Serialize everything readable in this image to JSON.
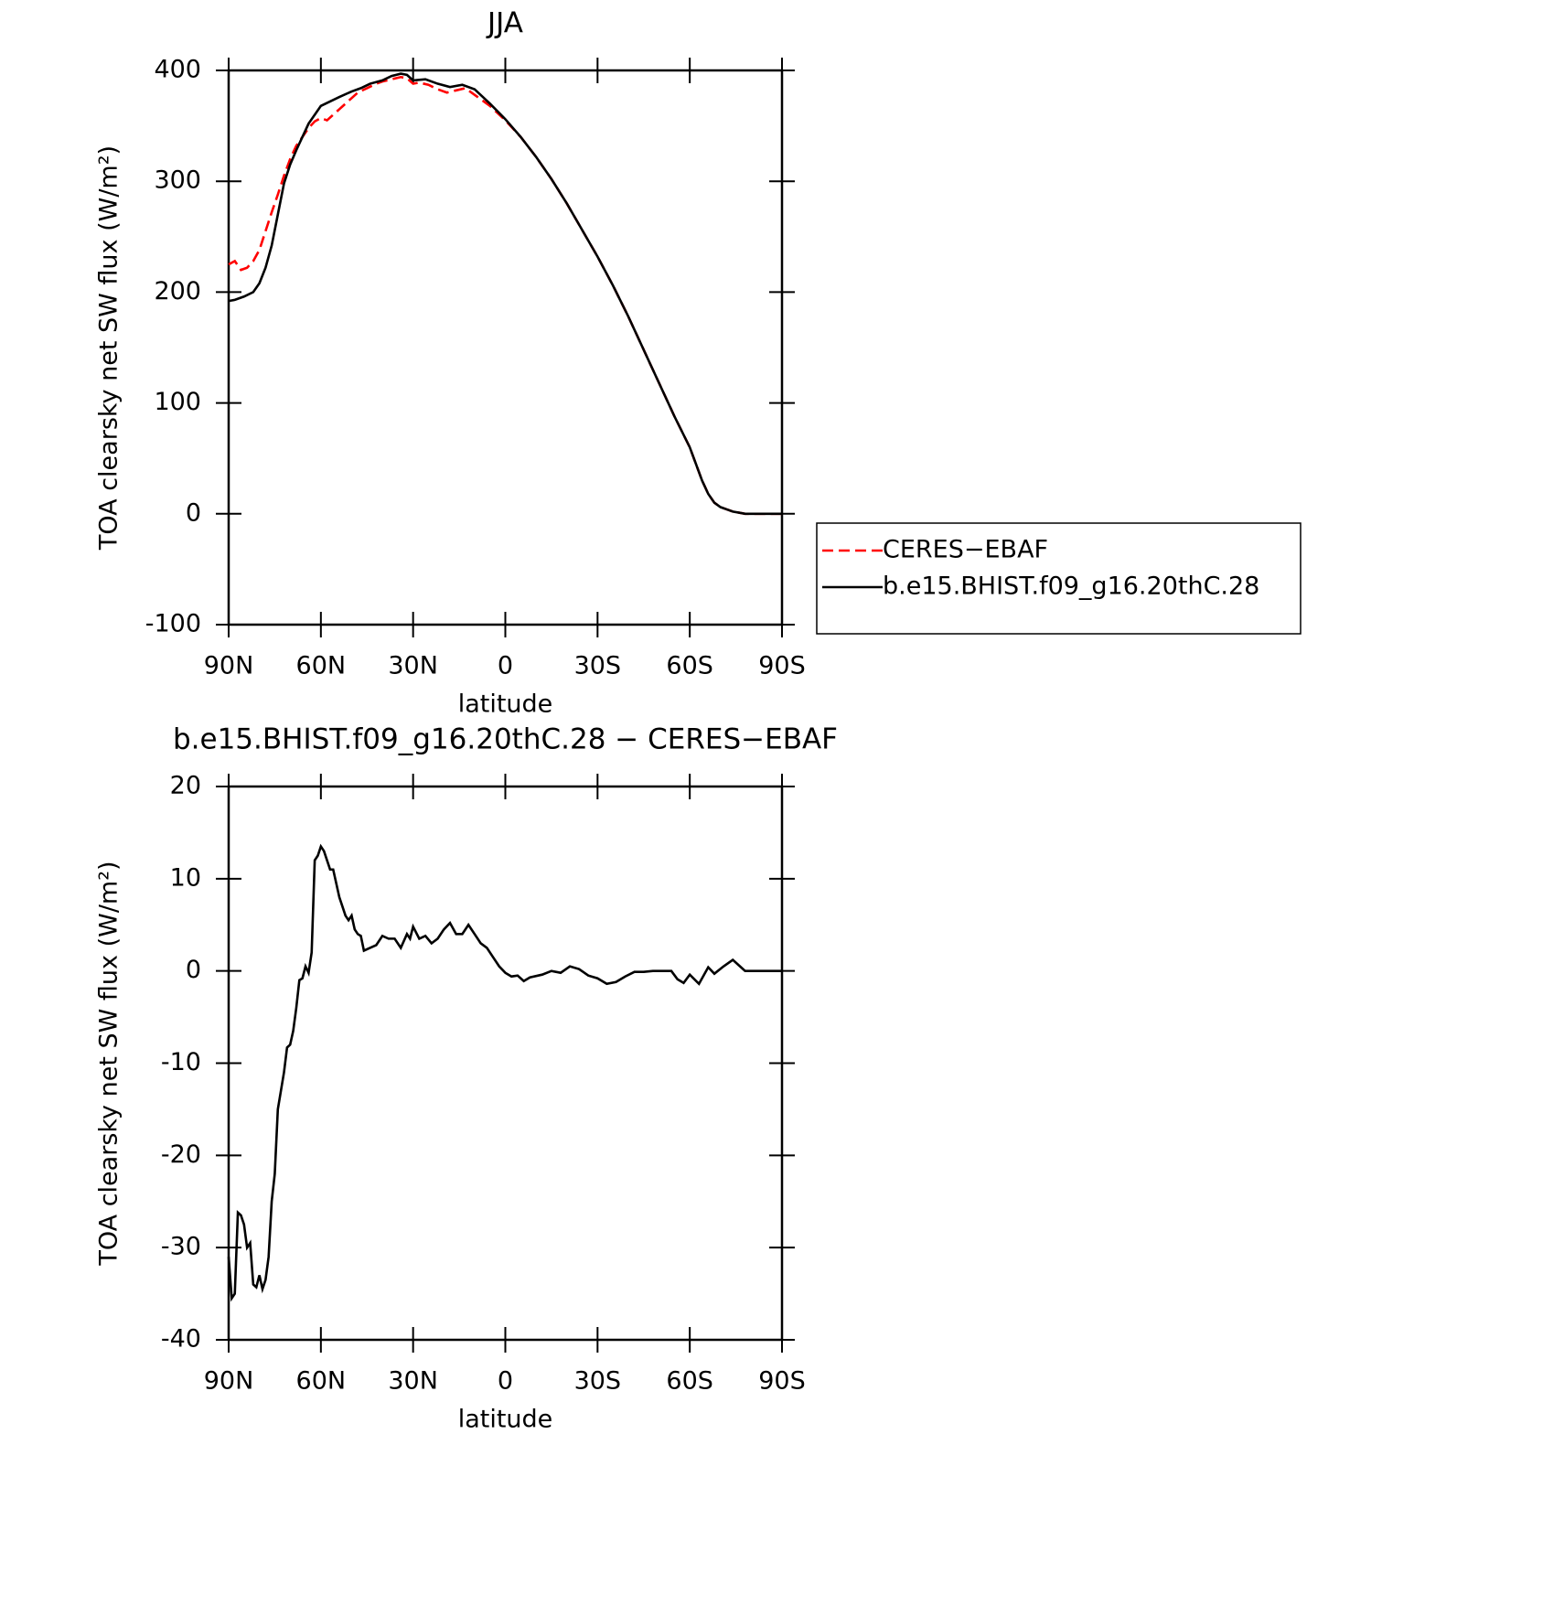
{
  "chart_data": [
    {
      "type": "line",
      "title": "JJA",
      "xlabel": "latitude",
      "ylabel": "TOA clearsky net SW flux (W/m²)",
      "xlim": [
        90,
        -90
      ],
      "xticks": [
        {
          "value": 90,
          "label": "90N"
        },
        {
          "value": 60,
          "label": "60N"
        },
        {
          "value": 30,
          "label": "30N"
        },
        0,
        {
          "value": -30,
          "label": "30S"
        },
        {
          "value": -60,
          "label": "60S"
        },
        {
          "value": -90,
          "label": "90S"
        }
      ],
      "ylim": [
        -100,
        400
      ],
      "yticks": [
        -100,
        0,
        100,
        200,
        300,
        400
      ],
      "legend": "right",
      "series": [
        {
          "name": "CERES−EBAF",
          "color": "#ff0000",
          "dash": true,
          "x": [
            90,
            88,
            86,
            84,
            82,
            80,
            78,
            76,
            74,
            72,
            70,
            68,
            66,
            64,
            62,
            60,
            58,
            56,
            54,
            52,
            50,
            48,
            45,
            42,
            40,
            37,
            34,
            32,
            30,
            28,
            25,
            22,
            19,
            16,
            13,
            10,
            5,
            0,
            -5,
            -10,
            -15,
            -20,
            -25,
            -30,
            -35,
            -40,
            -45,
            -50,
            -55,
            -60,
            -62,
            -64,
            -66,
            -68,
            -70,
            -72,
            -74,
            -76,
            -78,
            -80,
            -85,
            -90
          ],
          "values": [
            225,
            228,
            220,
            222,
            228,
            238,
            255,
            272,
            288,
            305,
            320,
            332,
            340,
            348,
            354,
            357,
            355,
            360,
            365,
            370,
            375,
            380,
            384,
            388,
            390,
            392,
            394,
            393,
            388,
            389,
            387,
            383,
            380,
            382,
            384,
            378,
            368,
            355,
            340,
            322,
            302,
            280,
            256,
            232,
            206,
            178,
            148,
            118,
            88,
            60,
            45,
            30,
            18,
            10,
            6,
            4,
            2,
            1,
            0,
            0,
            0,
            0
          ]
        },
        {
          "name": "b.e15.BHIST.f09_g16.20thC.28",
          "color": "#000000",
          "dash": false,
          "x": [
            90,
            88,
            85,
            82,
            80,
            78,
            76,
            74,
            72,
            70,
            68,
            66,
            64,
            62,
            60,
            57,
            54,
            50,
            47,
            44,
            40,
            37,
            34,
            32,
            30,
            26,
            22,
            18,
            14,
            10,
            5,
            0,
            -5,
            -10,
            -15,
            -20,
            -25,
            -30,
            -35,
            -40,
            -45,
            -50,
            -55,
            -60,
            -62,
            -64,
            -66,
            -68,
            -70,
            -72,
            -74,
            -76,
            -78,
            -80,
            -85,
            -90
          ],
          "values": [
            192,
            193,
            196,
            200,
            208,
            222,
            242,
            270,
            298,
            315,
            328,
            340,
            352,
            360,
            368,
            372,
            376,
            381,
            384,
            388,
            391,
            395,
            397,
            396,
            391,
            392,
            388,
            385,
            387,
            383,
            370,
            356,
            340,
            322,
            302,
            280,
            256,
            232,
            206,
            178,
            148,
            118,
            88,
            60,
            45,
            30,
            18,
            10,
            6,
            4,
            2,
            1,
            0,
            0,
            0,
            0
          ]
        }
      ]
    },
    {
      "type": "line",
      "title": "b.e15.BHIST.f09_g16.20thC.28 − CERES−EBAF",
      "xlabel": "latitude",
      "ylabel": "TOA clearsky net SW flux (W/m²)",
      "xlim": [
        90,
        -90
      ],
      "xticks": [
        {
          "value": 90,
          "label": "90N"
        },
        {
          "value": 60,
          "label": "60N"
        },
        {
          "value": 30,
          "label": "30N"
        },
        0,
        {
          "value": -30,
          "label": "30S"
        },
        {
          "value": -60,
          "label": "60S"
        },
        {
          "value": -90,
          "label": "90S"
        }
      ],
      "ylim": [
        -40,
        20
      ],
      "yticks": [
        -40,
        -30,
        -20,
        -10,
        0,
        10,
        20
      ],
      "series": [
        {
          "color": "#000000",
          "dash": false,
          "x": [
            90,
            89,
            88,
            87,
            86,
            85,
            84,
            83,
            82,
            81,
            80,
            79,
            78,
            77,
            76,
            75,
            74,
            72,
            71,
            70,
            69,
            68,
            67,
            66,
            65,
            64,
            63,
            62,
            61,
            60,
            59,
            58,
            57,
            56,
            55,
            54,
            53,
            52,
            51,
            50,
            49,
            48,
            47,
            46,
            44,
            42,
            40,
            38,
            36,
            34,
            32,
            31,
            30,
            28,
            26,
            24,
            22,
            20,
            18,
            16,
            14,
            12,
            10,
            8,
            6,
            4,
            2,
            0,
            -2,
            -4,
            -6,
            -8,
            -12,
            -15,
            -18,
            -21,
            -24,
            -27,
            -30,
            -33,
            -36,
            -39,
            -42,
            -45,
            -48,
            -51,
            -54,
            -56,
            -58,
            -60,
            -63,
            -66,
            -68,
            -71,
            -74,
            -76,
            -78,
            -85,
            -90
          ],
          "values": [
            -31,
            -35.5,
            -35,
            -26.2,
            -26.5,
            -27.5,
            -30,
            -29.5,
            -34,
            -34.3,
            -33,
            -34.5,
            -33.5,
            -31,
            -25,
            -22,
            -15,
            -11,
            -8.3,
            -8,
            -6.5,
            -4,
            -1,
            -0.8,
            0.5,
            -0.2,
            2,
            12,
            12.5,
            13.5,
            13,
            12,
            11,
            11,
            9.5,
            8,
            7,
            6,
            5.5,
            6,
            4.5,
            4,
            3.8,
            2.2,
            2.5,
            2.8,
            3.8,
            3.5,
            3.5,
            2.5,
            4,
            3.5,
            4.8,
            3.5,
            3.8,
            3,
            3.5,
            4.5,
            5.2,
            4,
            4,
            5,
            4,
            3,
            2.5,
            1.5,
            0.5,
            -0.2,
            -0.6,
            -0.5,
            -1.1,
            -0.7,
            -0.4,
            0,
            -0.2,
            0.5,
            0.2,
            -0.5,
            -0.8,
            -1.4,
            -1.2,
            -0.6,
            -0.1,
            -0.1,
            0,
            0,
            0,
            -0.9,
            -1.3,
            -0.4,
            -1.4,
            0.4,
            -0.3,
            0.5,
            1.2,
            0.6,
            0,
            0,
            0
          ]
        }
      ]
    }
  ]
}
